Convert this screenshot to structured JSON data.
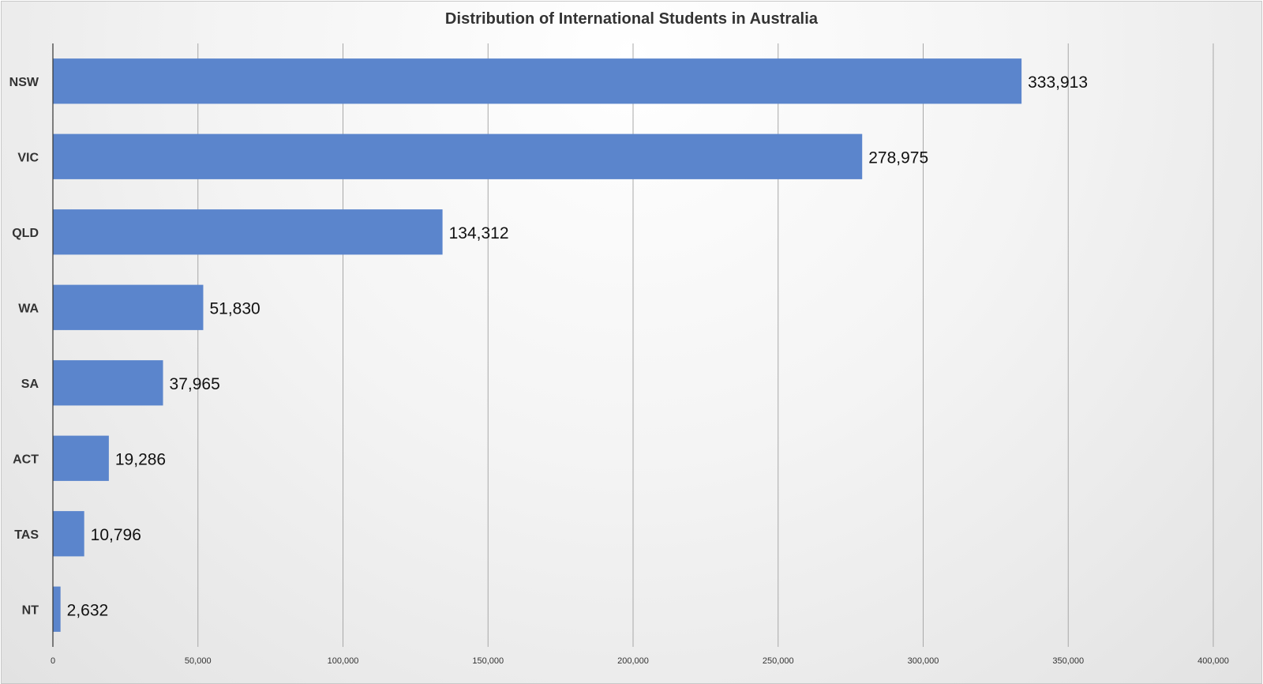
{
  "chart_data": {
    "type": "bar",
    "orientation": "horizontal",
    "title": "Distribution of International Students in Australia",
    "xlabel": "",
    "ylabel": "",
    "categories": [
      "NSW",
      "VIC",
      "QLD",
      "WA",
      "SA",
      "ACT",
      "TAS",
      "NT"
    ],
    "values": [
      333913,
      278975,
      134312,
      51830,
      37965,
      19286,
      10796,
      2632
    ],
    "data_labels": [
      "333,913",
      "278,975",
      "134,312",
      "51,830",
      "37,965",
      "19,286",
      "10,796",
      "2,632"
    ],
    "xlim": [
      0,
      400000
    ],
    "ticks": [
      0,
      50000,
      100000,
      150000,
      200000,
      250000,
      300000,
      350000,
      400000
    ],
    "tick_labels": [
      "0",
      "50,000",
      "100,000",
      "150,000",
      "200,000",
      "250,000",
      "300,000",
      "350,000",
      "400,000"
    ],
    "grid": true,
    "legend": "none",
    "bar_color": "#5b85cc"
  }
}
